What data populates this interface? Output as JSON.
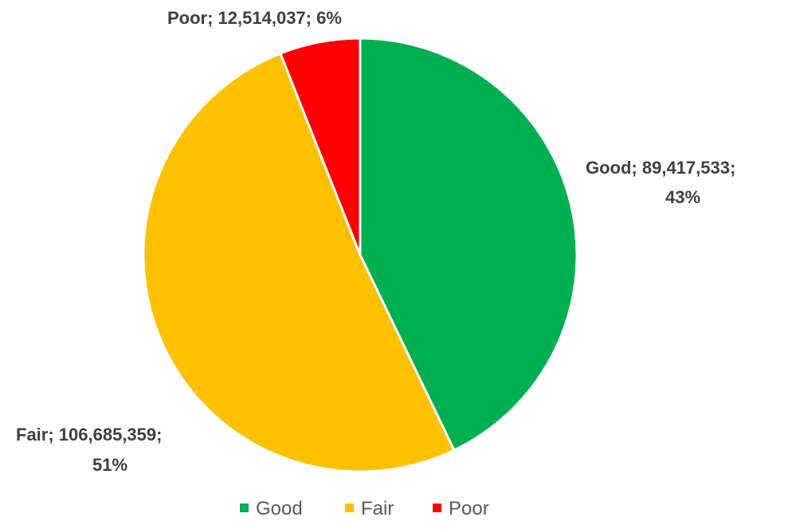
{
  "chart_data": {
    "type": "pie",
    "title": "",
    "slices": [
      {
        "name": "Good",
        "value": 89417533,
        "label_line1": "Good; 89,417,533;",
        "label_line2": "43%",
        "color": "#00b050"
      },
      {
        "name": "Fair",
        "value": 106685359,
        "label_line1": "Fair; 106,685,359;",
        "label_line2": "51%",
        "color": "#ffc000"
      },
      {
        "name": "Poor",
        "value": 12514037,
        "label_line1": "Poor; 12,514,037; 6%",
        "label_line2": "",
        "color": "#ff0000"
      }
    ],
    "legend": {
      "position": "bottom",
      "entries": [
        "Good",
        "Fair",
        "Poor"
      ]
    }
  }
}
